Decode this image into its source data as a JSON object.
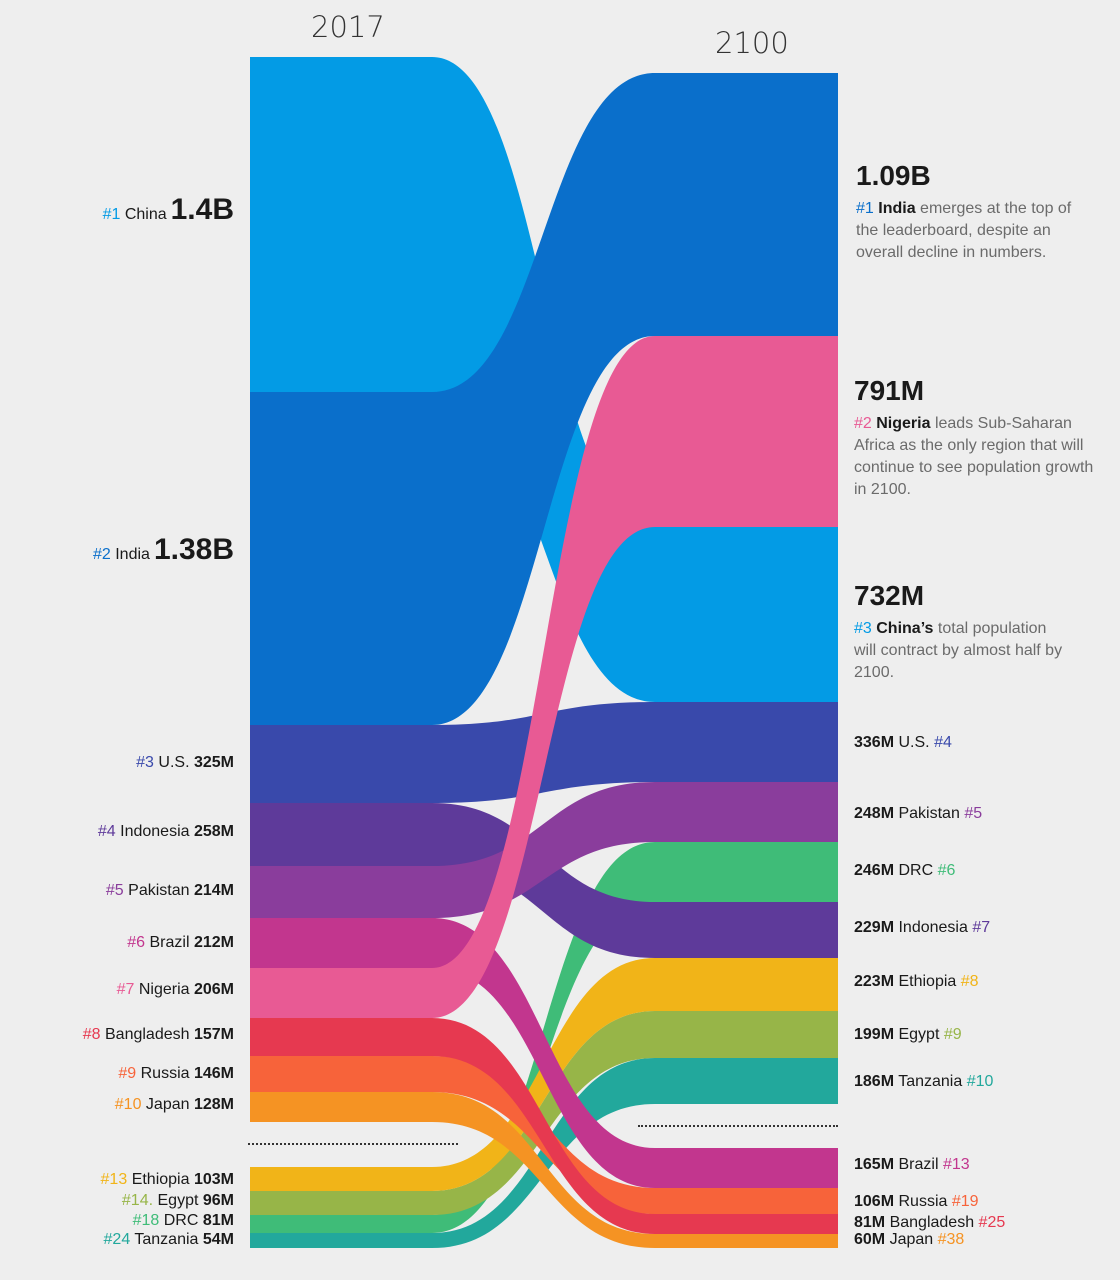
{
  "chart_data": {
    "type": "sankey",
    "columns": [
      "2017",
      "2100"
    ],
    "unit": "population",
    "flows": [
      {
        "country": "China",
        "color": "#039BE5",
        "rank_2017": "#1",
        "value_2017": "1.4B",
        "rank_2100": "#3",
        "value_2100": "732M"
      },
      {
        "country": "India",
        "color": "#0A6FCB",
        "rank_2017": "#2",
        "value_2017": "1.38B",
        "rank_2100": "#1",
        "value_2100": "1.09B"
      },
      {
        "country": "U.S.",
        "color": "#3949AB",
        "rank_2017": "#3",
        "value_2017": "325M",
        "rank_2100": "#4",
        "value_2100": "336M"
      },
      {
        "country": "Indonesia",
        "color": "#5E3A9A",
        "rank_2017": "#4",
        "value_2017": "258M",
        "rank_2100": "#7",
        "value_2100": "229M"
      },
      {
        "country": "Pakistan",
        "color": "#8A3D9C",
        "rank_2017": "#5",
        "value_2017": "214M",
        "rank_2100": "#5",
        "value_2100": "248M"
      },
      {
        "country": "Brazil",
        "color": "#C2368E",
        "rank_2017": "#6",
        "value_2017": "212M",
        "rank_2100": "#13",
        "value_2100": "165M"
      },
      {
        "country": "Nigeria",
        "color": "#E85A94",
        "rank_2017": "#7",
        "value_2017": "206M",
        "rank_2100": "#2",
        "value_2100": "791M"
      },
      {
        "country": "Bangladesh",
        "color": "#E63950",
        "rank_2017": "#8",
        "value_2017": "157M",
        "rank_2100": "#25",
        "value_2100": "81M"
      },
      {
        "country": "Russia",
        "color": "#F7633A",
        "rank_2017": "#9",
        "value_2017": "146M",
        "rank_2100": "#19",
        "value_2100": "106M"
      },
      {
        "country": "Japan",
        "color": "#F59323",
        "rank_2017": "#10",
        "value_2017": "128M",
        "rank_2100": "#38",
        "value_2100": "60M"
      },
      {
        "country": "Ethiopia",
        "color": "#F1B418",
        "rank_2017": "#13",
        "value_2017": "103M",
        "rank_2100": "#8",
        "value_2100": "223M"
      },
      {
        "country": "Egypt",
        "color": "#97B548",
        "rank_2017": "#14.",
        "value_2017": "96M",
        "rank_2100": "#9",
        "value_2100": "199M"
      },
      {
        "country": "DRC",
        "color": "#3FBC78",
        "rank_2017": "#18",
        "value_2017": "81M",
        "rank_2100": "#6",
        "value_2100": "246M"
      },
      {
        "country": "Tanzania",
        "color": "#22A89C",
        "rank_2017": "#24",
        "value_2017": "54M",
        "rank_2100": "#10",
        "value_2100": "186M"
      }
    ],
    "annotations": {
      "india": {
        "value": "1.09B",
        "rank": "#1",
        "name": "India",
        "text": "emerges at the top of the leaderboard, despite an overall decline in numbers."
      },
      "nigeria": {
        "value": "791M",
        "rank": "#2",
        "name": "Nigeria",
        "text": "leads Sub-Saharan Africa as the only region that will continue to see population growth in 2100."
      },
      "china": {
        "value": "732M",
        "rank": "#3",
        "name": "China’s",
        "text": "total population will contract by almost half by 2100."
      }
    }
  }
}
